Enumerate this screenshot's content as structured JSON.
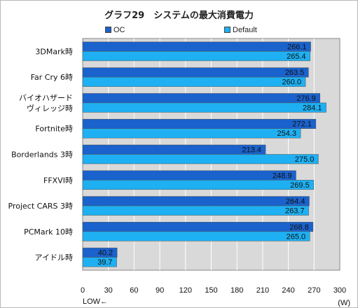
{
  "chart_data": {
    "type": "bar",
    "orientation": "horizontal",
    "title": "グラフ29　システムの最大消費電力",
    "categories": [
      "3DMark時",
      "Far Cry 6時",
      [
        "バイオハザード",
        "ヴィレッジ時"
      ],
      "Fortnite時",
      "Borderlands 3時",
      "FFXVI時",
      "Project CARS 3時",
      "PCMark 10時",
      "アイドル時"
    ],
    "series": [
      {
        "name": "OC",
        "color": "#1a62cc",
        "values": [
          266.1,
          263.5,
          276.9,
          272.1,
          213.4,
          248.9,
          264.4,
          268.8,
          40.2
        ]
      },
      {
        "name": "Default",
        "color": "#1eb0f2",
        "values": [
          265.4,
          260.0,
          284.1,
          254.3,
          275.0,
          269.5,
          263.7,
          265.0,
          39.7
        ]
      }
    ],
    "xlim": [
      0,
      300
    ],
    "xticks": [
      0,
      30,
      60,
      90,
      120,
      150,
      180,
      210,
      240,
      270,
      300
    ],
    "xlabel": "LOW←",
    "unit": "(W)",
    "grid": "vertical",
    "legend": "top",
    "plot_background": "#d9d9d9"
  }
}
